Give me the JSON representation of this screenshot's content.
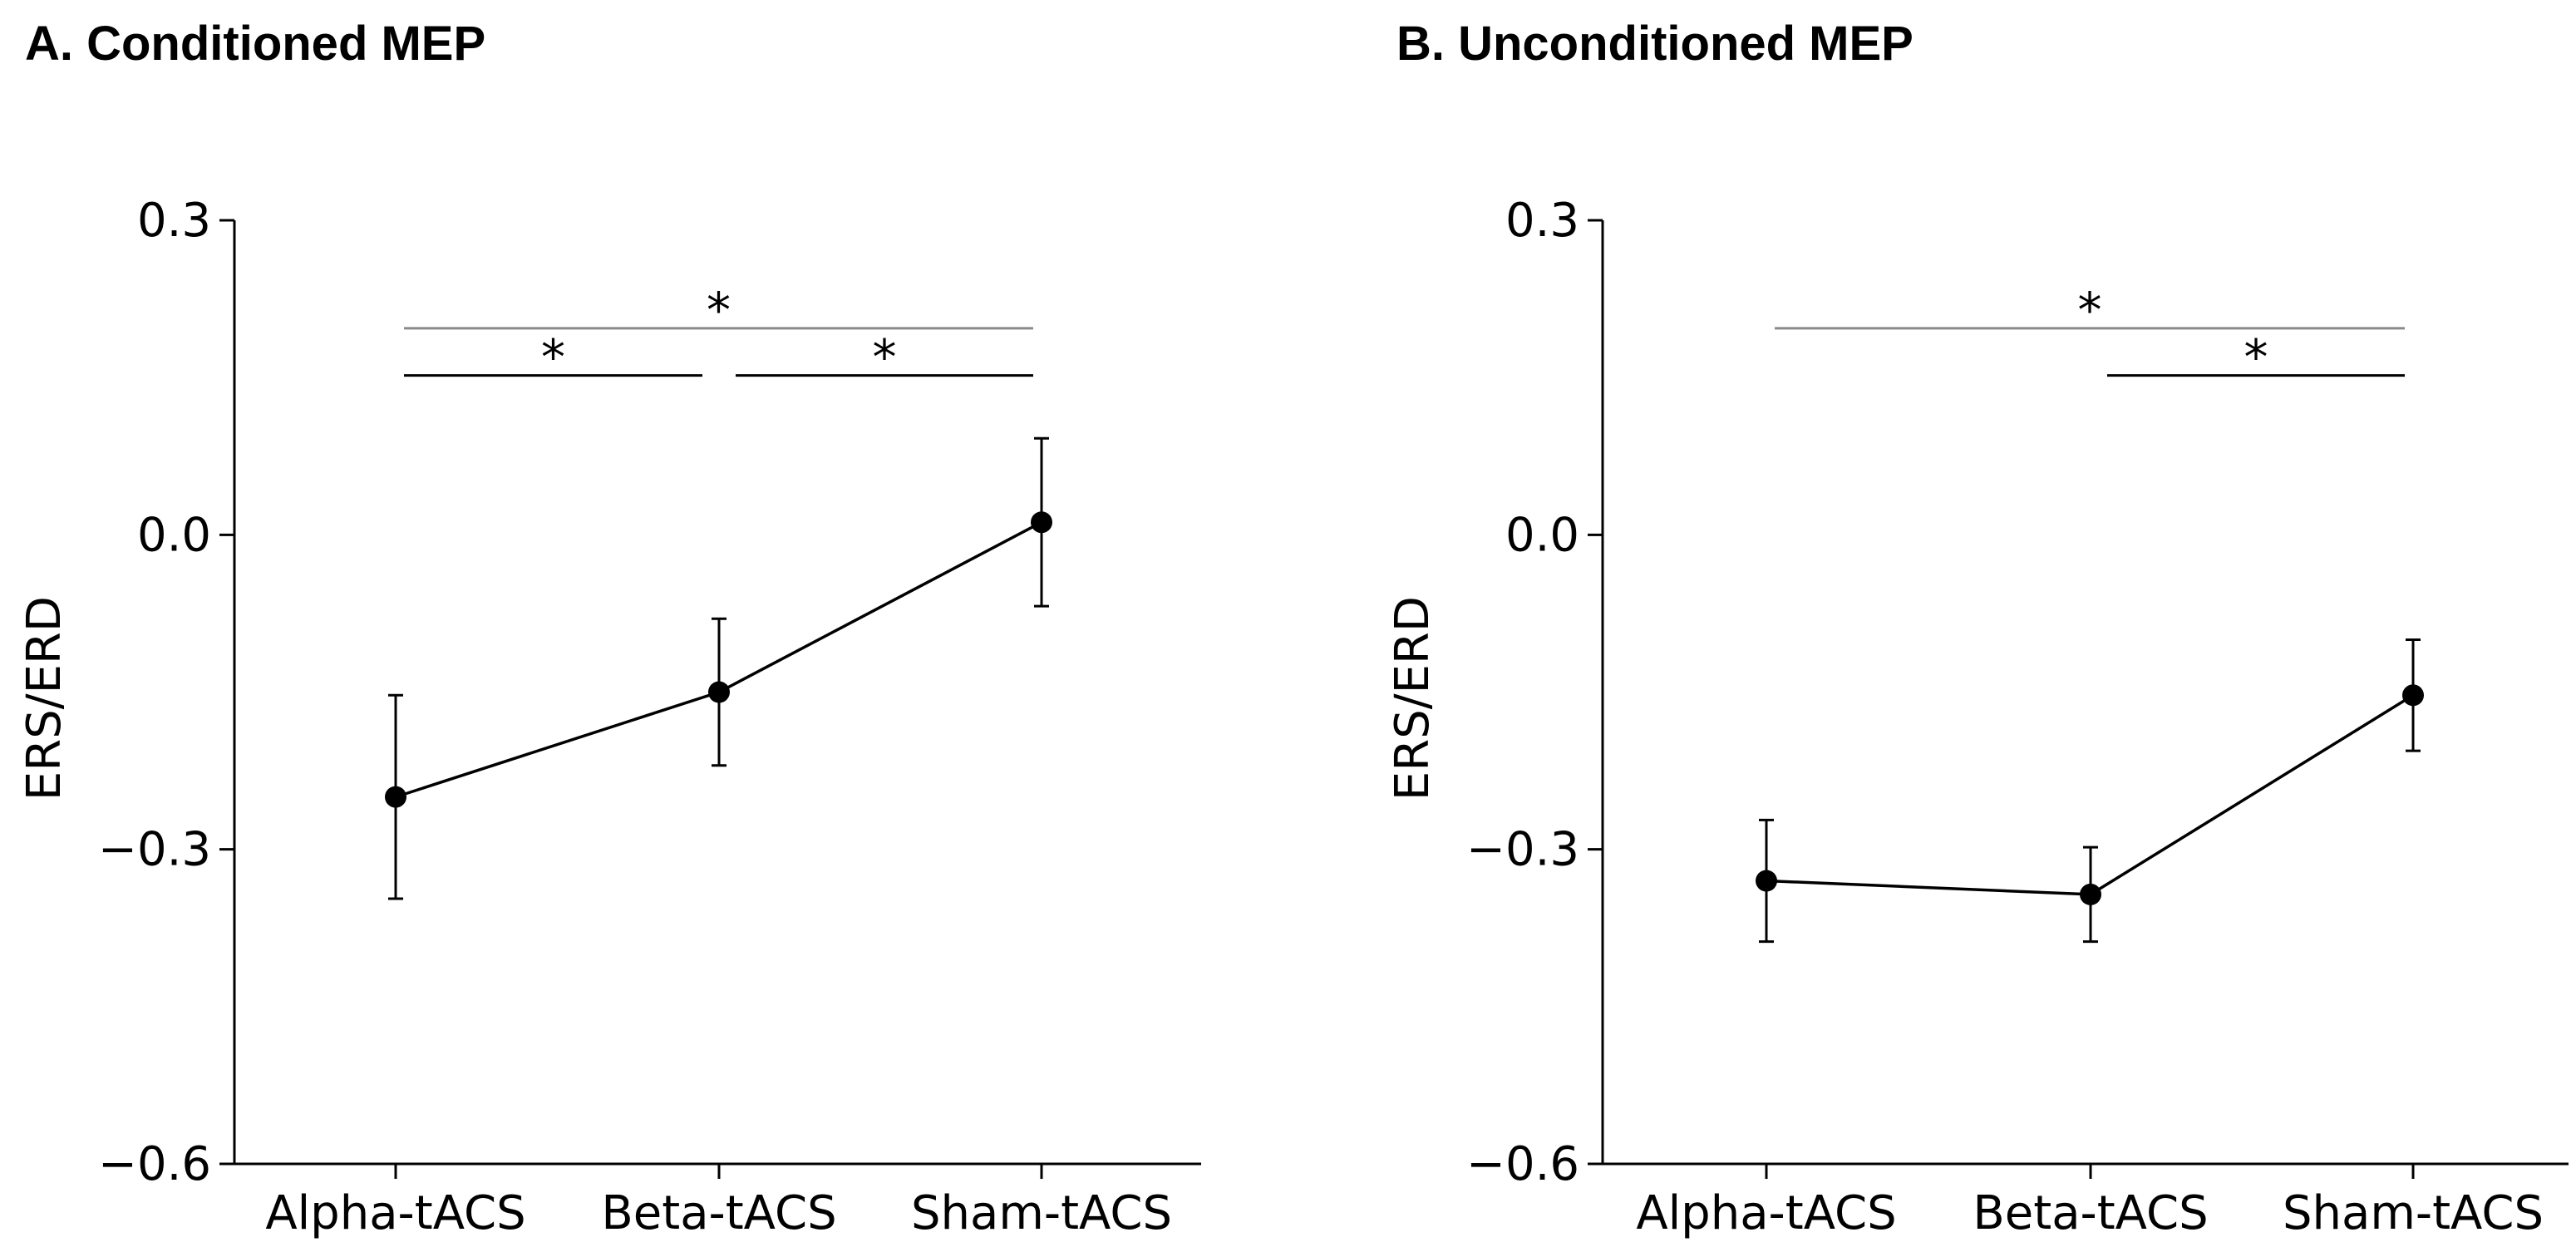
{
  "chart_data": [
    {
      "type": "line",
      "title": "A. Conditioned MEP",
      "xlabel": "",
      "ylabel": "ERS/ERD",
      "categories": [
        "Alpha-tACS",
        "Beta-tACS",
        "Sham-tACS"
      ],
      "values": [
        -0.25,
        -0.15,
        0.012
      ],
      "errors": [
        0.097,
        0.07,
        0.08
      ],
      "ylim": [
        -0.6,
        0.3
      ],
      "yticks": [
        0.3,
        0.0,
        -0.3,
        -0.6
      ],
      "ytick_labels": [
        "0.3",
        "0.0",
        "−0.3",
        "−0.6"
      ],
      "significance": [
        {
          "from": 0,
          "to": 2,
          "label": "*",
          "level": 0.197,
          "color": "#8a8a8a"
        },
        {
          "from": 0,
          "to": 1,
          "label": "*",
          "level": 0.152,
          "color": "#000000"
        },
        {
          "from": 1,
          "to": 2,
          "label": "*",
          "level": 0.152,
          "color": "#000000"
        }
      ]
    },
    {
      "type": "line",
      "title": "B. Unconditioned MEP",
      "xlabel": "",
      "ylabel": "ERS/ERD",
      "categories": [
        "Alpha-tACS",
        "Beta-tACS",
        "Sham-tACS"
      ],
      "values": [
        -0.33,
        -0.343,
        -0.153
      ],
      "errors": [
        0.058,
        0.045,
        0.053
      ],
      "ylim": [
        -0.6,
        0.3
      ],
      "yticks": [
        0.3,
        0.0,
        -0.3,
        -0.6
      ],
      "ytick_labels": [
        "0.3",
        "0.0",
        "−0.3",
        "−0.6"
      ],
      "significance": [
        {
          "from": 0,
          "to": 2,
          "label": "*",
          "level": 0.197,
          "color": "#8a8a8a"
        },
        {
          "from": 1,
          "to": 2,
          "label": "*",
          "level": 0.152,
          "color": "#000000"
        }
      ]
    }
  ]
}
